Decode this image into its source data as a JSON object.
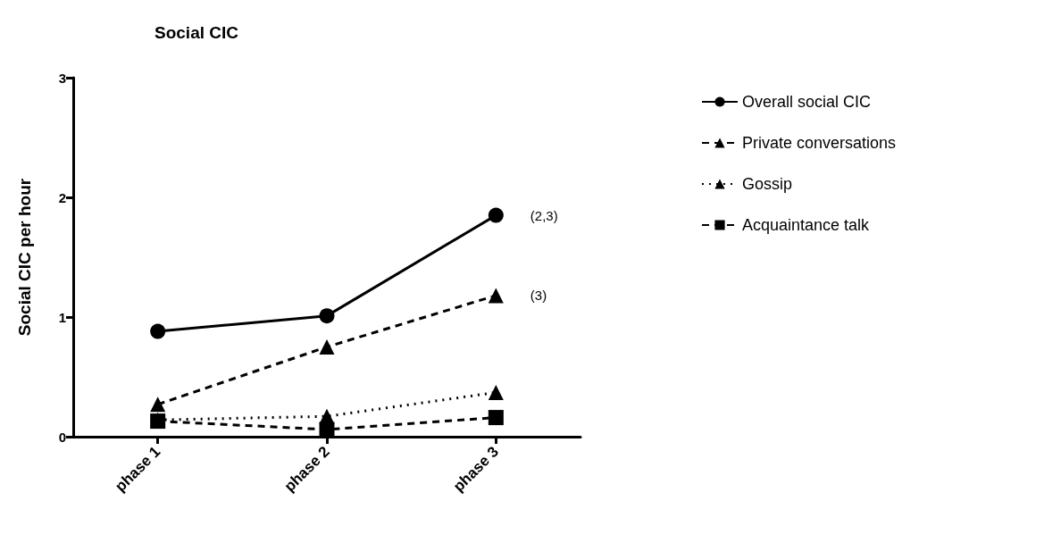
{
  "chart_data": {
    "type": "line",
    "title": "Social CIC",
    "ylabel": "Social CIC per hour",
    "categories": [
      "phase 1",
      "phase 2",
      "phase 3"
    ],
    "series": [
      {
        "name": "Overall social CIC",
        "color": "#000000",
        "marker": "circle",
        "line_style": "solid",
        "values": [
          0.88,
          1.01,
          1.85
        ]
      },
      {
        "name": "Private conversations",
        "color": "#000000",
        "marker": "triangle",
        "line_style": "dashed",
        "values": [
          0.27,
          0.75,
          1.18
        ]
      },
      {
        "name": "Gossip",
        "color": "#000000",
        "marker": "triangle",
        "line_style": "dotted",
        "values": [
          0.14,
          0.17,
          0.37
        ]
      },
      {
        "name": "Acquaintance talk",
        "color": "#000000",
        "marker": "square",
        "line_style": "dashed",
        "values": [
          0.13,
          0.06,
          0.16
        ]
      }
    ],
    "ylim": [
      0,
      3
    ],
    "yticks": [
      0,
      1,
      2,
      3
    ],
    "grid": false,
    "legend": "right",
    "annotations": [
      {
        "text": "(2,3)",
        "x": "phase 3",
        "y": 1.85
      },
      {
        "text": "(3)",
        "x": "phase 3",
        "y": 1.18
      }
    ]
  }
}
